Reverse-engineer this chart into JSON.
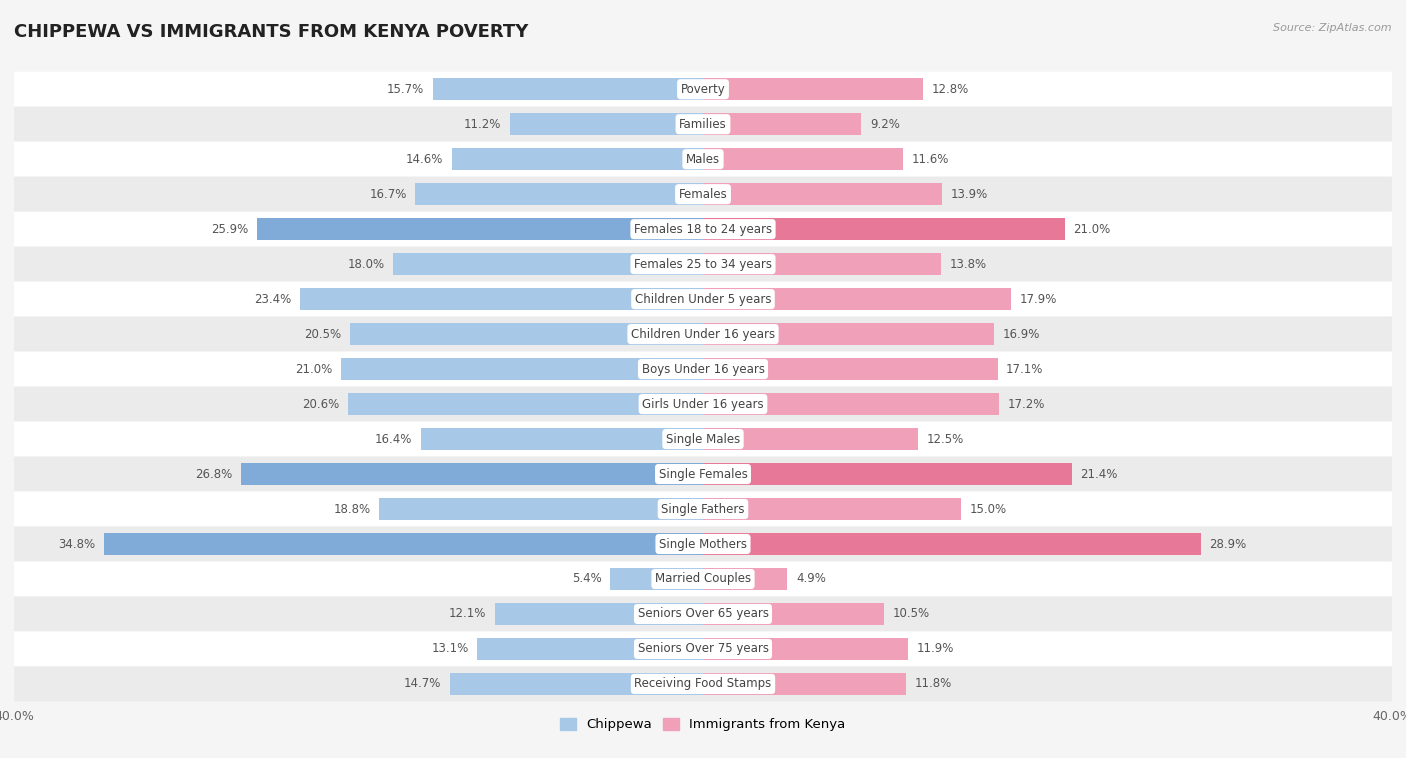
{
  "title": "CHIPPEWA VS IMMIGRANTS FROM KENYA POVERTY",
  "source": "Source: ZipAtlas.com",
  "categories": [
    "Poverty",
    "Families",
    "Males",
    "Females",
    "Females 18 to 24 years",
    "Females 25 to 34 years",
    "Children Under 5 years",
    "Children Under 16 years",
    "Boys Under 16 years",
    "Girls Under 16 years",
    "Single Males",
    "Single Females",
    "Single Fathers",
    "Single Mothers",
    "Married Couples",
    "Seniors Over 65 years",
    "Seniors Over 75 years",
    "Receiving Food Stamps"
  ],
  "chippewa": [
    15.7,
    11.2,
    14.6,
    16.7,
    25.9,
    18.0,
    23.4,
    20.5,
    21.0,
    20.6,
    16.4,
    26.8,
    18.8,
    34.8,
    5.4,
    12.1,
    13.1,
    14.7
  ],
  "kenya": [
    12.8,
    9.2,
    11.6,
    13.9,
    21.0,
    13.8,
    17.9,
    16.9,
    17.1,
    17.2,
    12.5,
    21.4,
    15.0,
    28.9,
    4.9,
    10.5,
    11.9,
    11.8
  ],
  "chippewa_color": "#a8c8e8",
  "kenya_color": "#f0a0b8",
  "chippewa_highlight_color": "#80aad8",
  "kenya_highlight_color": "#e87898",
  "highlight_indices": [
    4,
    11,
    13
  ],
  "background_color": "#f5f5f5",
  "row_color_even": "#ffffff",
  "row_color_odd": "#ebebeb",
  "axis_limit": 40.0,
  "bar_height": 0.62,
  "label_color": "#555555",
  "center_label_color": "#444444",
  "legend_chippewa": "Chippewa",
  "legend_kenya": "Immigrants from Kenya",
  "value_fontsize": 8.5,
  "category_fontsize": 8.5
}
